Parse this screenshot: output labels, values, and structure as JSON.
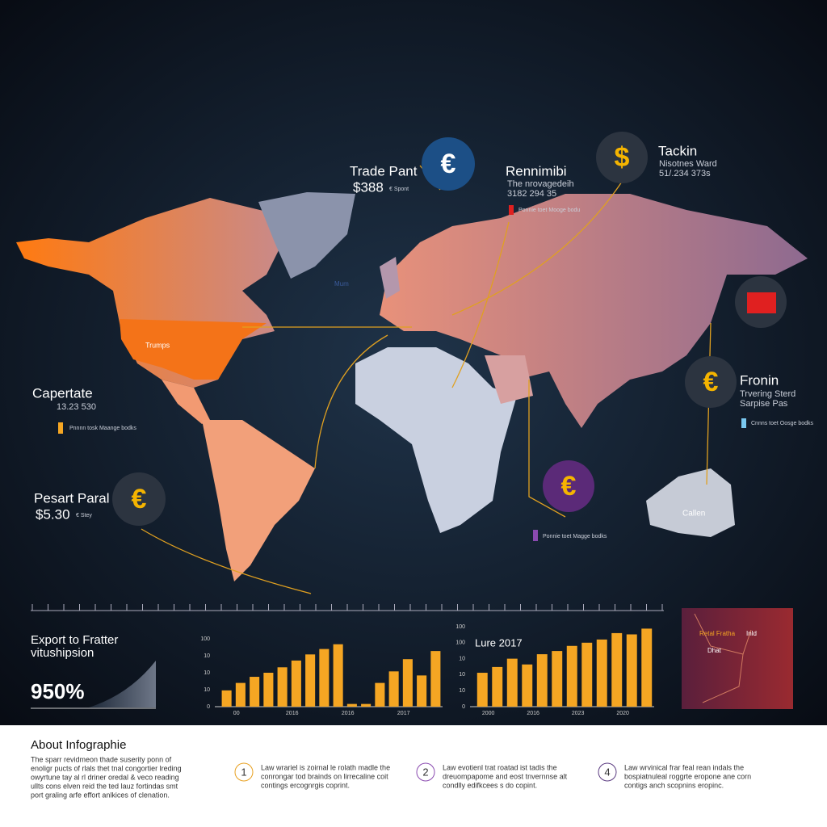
{
  "header": {
    "label_left": "Trumps",
    "label_greenland": "Mum",
    "label_australia": "Callen"
  },
  "callouts": {
    "trade": {
      "title": "Trade Pant",
      "value": "$388",
      "note": "€ Spont",
      "symbol": "€"
    },
    "renminbi": {
      "title": "Rennimibi",
      "note": "The nrovagedeih",
      "value": "3182 294 35",
      "small": "Ponnie toet Mooge bodu"
    },
    "tackin": {
      "title": "Tackin",
      "note": "Nisotnes Ward",
      "value": "51/.234 373s",
      "symbol": "$"
    },
    "capertate": {
      "title": "Capertate",
      "value": "13.23 530",
      "small": "Pnnnn tosk Maange bodks"
    },
    "pesart": {
      "title": "Pesart Paral",
      "value": "$5.30",
      "note": "€ Stey",
      "symbol": "€"
    },
    "fronin": {
      "title": "Fronin",
      "note": "Trvering Sterd",
      "value": "Sarpise Pas",
      "symbol": "€",
      "small": "Cnnns toet Oosge bodks"
    },
    "africa": {
      "symbol": "€",
      "small": "Ponnie toet Magge bodks"
    }
  },
  "stat": {
    "title": "Export to Fratter",
    "subtitle": "vitushipsion",
    "value": "950%"
  },
  "charts": [
    {
      "type": "bar",
      "ylim": [
        0,
        100
      ],
      "ytick_labels": [
        "0",
        "10",
        "10",
        "10",
        "100"
      ],
      "x_labels": [
        "00",
        "2016",
        "2016",
        "2017"
      ],
      "values": [
        24,
        35,
        44,
        50,
        58,
        68,
        77,
        85,
        92,
        4,
        4,
        35,
        52,
        70,
        46,
        82
      ],
      "color": "#f5a623"
    },
    {
      "type": "bar",
      "title": "Lure 2017",
      "ylim": [
        0,
        125
      ],
      "ytick_labels": [
        "0",
        "10",
        "10",
        "10",
        "100",
        "100"
      ],
      "x_labels": [
        "2000",
        "2016",
        "2023",
        "2020"
      ],
      "values": [
        53,
        62,
        75,
        66,
        82,
        87,
        95,
        100,
        105,
        115,
        113,
        122
      ],
      "color": "#f5a623"
    }
  ],
  "inset": {
    "label_a": "Retal Fratha",
    "label_b": "Inld",
    "label_c": "Dhat"
  },
  "about": {
    "title": "About Infographie",
    "lines": [
      "The sparr revidmeon thade suserity ponn of",
      "enoligr pucts of rlals thet tnal congortier lreding",
      "owyrtune tay al rl driner oredal & veco reading",
      "ullts cons elven reid the ted lauz fortindas smt",
      "port graling arfe effort anlkices of clenation."
    ],
    "items": [
      {
        "num": "1",
        "text": [
          "Law wrariel is zoirnal le rolath madle the",
          "conrongar tod brainds on lirrecaline coit",
          "contings ercognrgis coprint."
        ]
      },
      {
        "num": "2",
        "text": [
          "Law evotienl trat roatad ist tadis the",
          "dreuompapome and eost tnvernnse alt",
          "condlly edifkcees s do copint."
        ]
      },
      {
        "num": "4",
        "text": [
          "Law wrvinical frar feal rean indals the",
          "bospiatnuleal roggrte eropone ane corn",
          "contigs anch scopnins eropinc."
        ]
      }
    ]
  }
}
